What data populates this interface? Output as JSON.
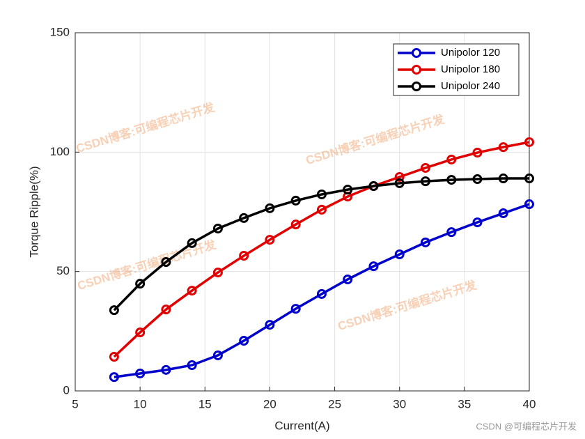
{
  "chart_data": {
    "type": "line",
    "xlabel": "Current(A)",
    "ylabel": "Torque Ripple(%)",
    "x": [
      8,
      10,
      12,
      14,
      16,
      18,
      20,
      22,
      24,
      26,
      28,
      30,
      32,
      34,
      36,
      38,
      40
    ],
    "series": [
      {
        "name": "Unipolor 120",
        "color": "#0000cc",
        "values": [
          5.8,
          7.3,
          8.8,
          10.8,
          14.9,
          21,
          27.7,
          34.4,
          40.6,
          46.7,
          52.2,
          57.2,
          62.2,
          66.5,
          70.6,
          74.4,
          78.2
        ]
      },
      {
        "name": "Unipolor 180",
        "color": "#e00000",
        "values": [
          14.3,
          24.5,
          34.1,
          42,
          49.6,
          56.6,
          63.3,
          69.7,
          75.9,
          81.4,
          85.8,
          89.6,
          93.4,
          96.9,
          99.8,
          102.1,
          104.2
        ]
      },
      {
        "name": "Unipolor 240",
        "color": "#000000",
        "values": [
          33.8,
          44.9,
          54,
          61.9,
          68,
          72.4,
          76.5,
          79.7,
          82.3,
          84.3,
          85.8,
          87,
          87.8,
          88.4,
          88.7,
          89,
          89
        ]
      }
    ],
    "xlim": [
      5,
      40
    ],
    "xticks": [
      5,
      10,
      15,
      20,
      25,
      30,
      35,
      40
    ],
    "ylim": [
      0,
      150
    ],
    "yticks": [
      0,
      50,
      100,
      150
    ],
    "grid": true,
    "legend": "top-right",
    "watermarks": [
      "CSDN博客:可编程芯片开发",
      "CSDN博客:可编程芯片开发",
      "CSDN博客:可编程芯片开发",
      "CSDN博客:可编程芯片开发"
    ],
    "footer": "CSDN @可编程芯片开发"
  }
}
